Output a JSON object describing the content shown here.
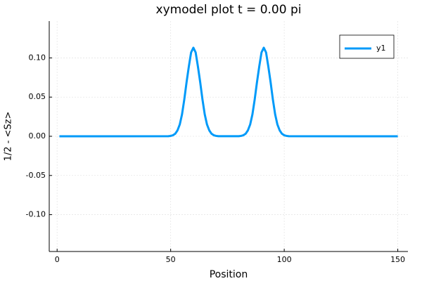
{
  "chart_data": {
    "type": "line",
    "title": "xymodel plot t = 0.00 pi",
    "xlabel": "Position",
    "ylabel": "1/2 - <Sz>",
    "x": [
      1,
      49,
      50,
      51,
      52,
      53,
      54,
      55,
      56,
      57,
      58,
      59,
      60,
      61,
      62,
      63,
      64,
      65,
      66,
      67,
      68,
      69,
      70,
      71,
      80,
      81,
      82,
      83,
      84,
      85,
      86,
      87,
      88,
      89,
      90,
      91,
      92,
      93,
      94,
      95,
      96,
      97,
      98,
      99,
      100,
      101,
      102,
      150
    ],
    "series": [
      {
        "name": "y1",
        "color": "#009af9",
        "values": [
          0,
          0.0001,
          0.0005,
          0.0013,
          0.0032,
          0.0075,
          0.015,
          0.028,
          0.047,
          0.069,
          0.089,
          0.107,
          0.113,
          0.107,
          0.089,
          0.069,
          0.047,
          0.028,
          0.015,
          0.0075,
          0.0032,
          0.0013,
          0.0005,
          0.0001,
          0.0001,
          0.0005,
          0.0013,
          0.0032,
          0.0075,
          0.015,
          0.028,
          0.047,
          0.069,
          0.089,
          0.107,
          0.113,
          0.107,
          0.089,
          0.069,
          0.047,
          0.028,
          0.015,
          0.0075,
          0.0032,
          0.0013,
          0.0005,
          0.0001,
          0
        ]
      }
    ],
    "xlim": [
      -3.47,
      154.47
    ],
    "xticks": [
      0,
      50,
      100,
      150
    ],
    "ylim": [
      -0.147,
      0.147
    ],
    "yticks": [
      {
        "value": -0.1,
        "label": "-0.10"
      },
      {
        "value": -0.05,
        "label": "-0.05"
      },
      {
        "value": 0,
        "label": "0.00"
      },
      {
        "value": 0.05,
        "label": "0.05"
      },
      {
        "value": 0.1,
        "label": "0.10"
      }
    ],
    "grid": true,
    "legend": "top-right"
  }
}
